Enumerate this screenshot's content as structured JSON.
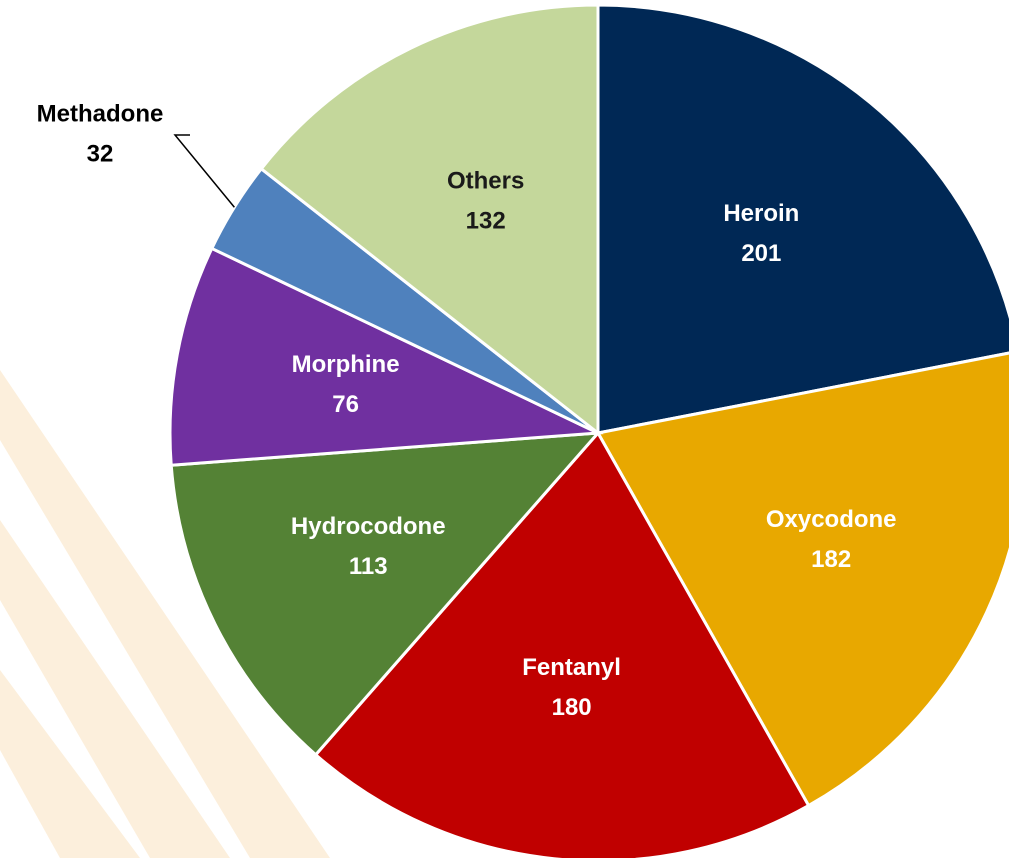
{
  "chart_data": {
    "type": "pie",
    "categories": [
      "Heroin",
      "Oxycodone",
      "Fentanyl",
      "Hydrocodone",
      "Morphine",
      "Methadone",
      "Others"
    ],
    "values": [
      201,
      182,
      180,
      113,
      76,
      32,
      132
    ],
    "colors": [
      "#002855",
      "#e8a800",
      "#c00000",
      "#548235",
      "#7030a0",
      "#4f81bd",
      "#c4d79b"
    ]
  }
}
